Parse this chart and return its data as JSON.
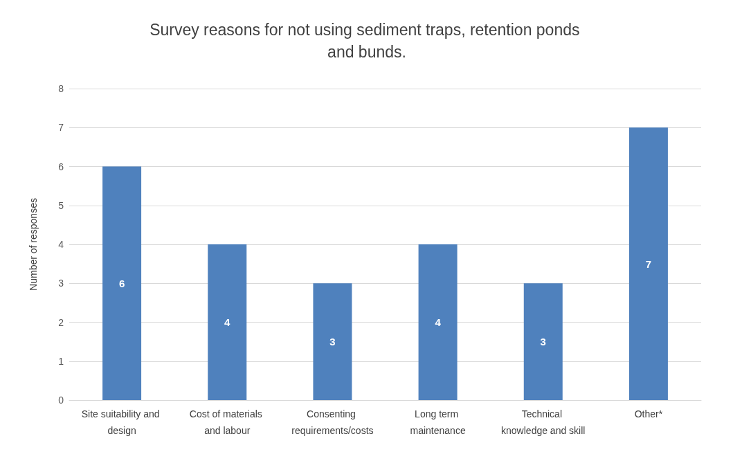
{
  "chart_data": {
    "type": "bar",
    "title": "Survey reasons for not using sediment traps, retention ponds and bunds.",
    "ylabel": "Number of responses",
    "categories": [
      "Site suitability and design",
      "Cost of materials and labour",
      "Consenting requirements/costs",
      "Long term maintenance",
      "Technical knowledge and skill",
      "Other*"
    ],
    "values": [
      6,
      4,
      3,
      4,
      3,
      7
    ],
    "color": "#4f81bd",
    "ylim": [
      0,
      8
    ],
    "yticks": [
      0,
      1,
      2,
      3,
      4,
      5,
      6,
      7,
      8
    ],
    "grid": "y",
    "data_labels": true
  }
}
